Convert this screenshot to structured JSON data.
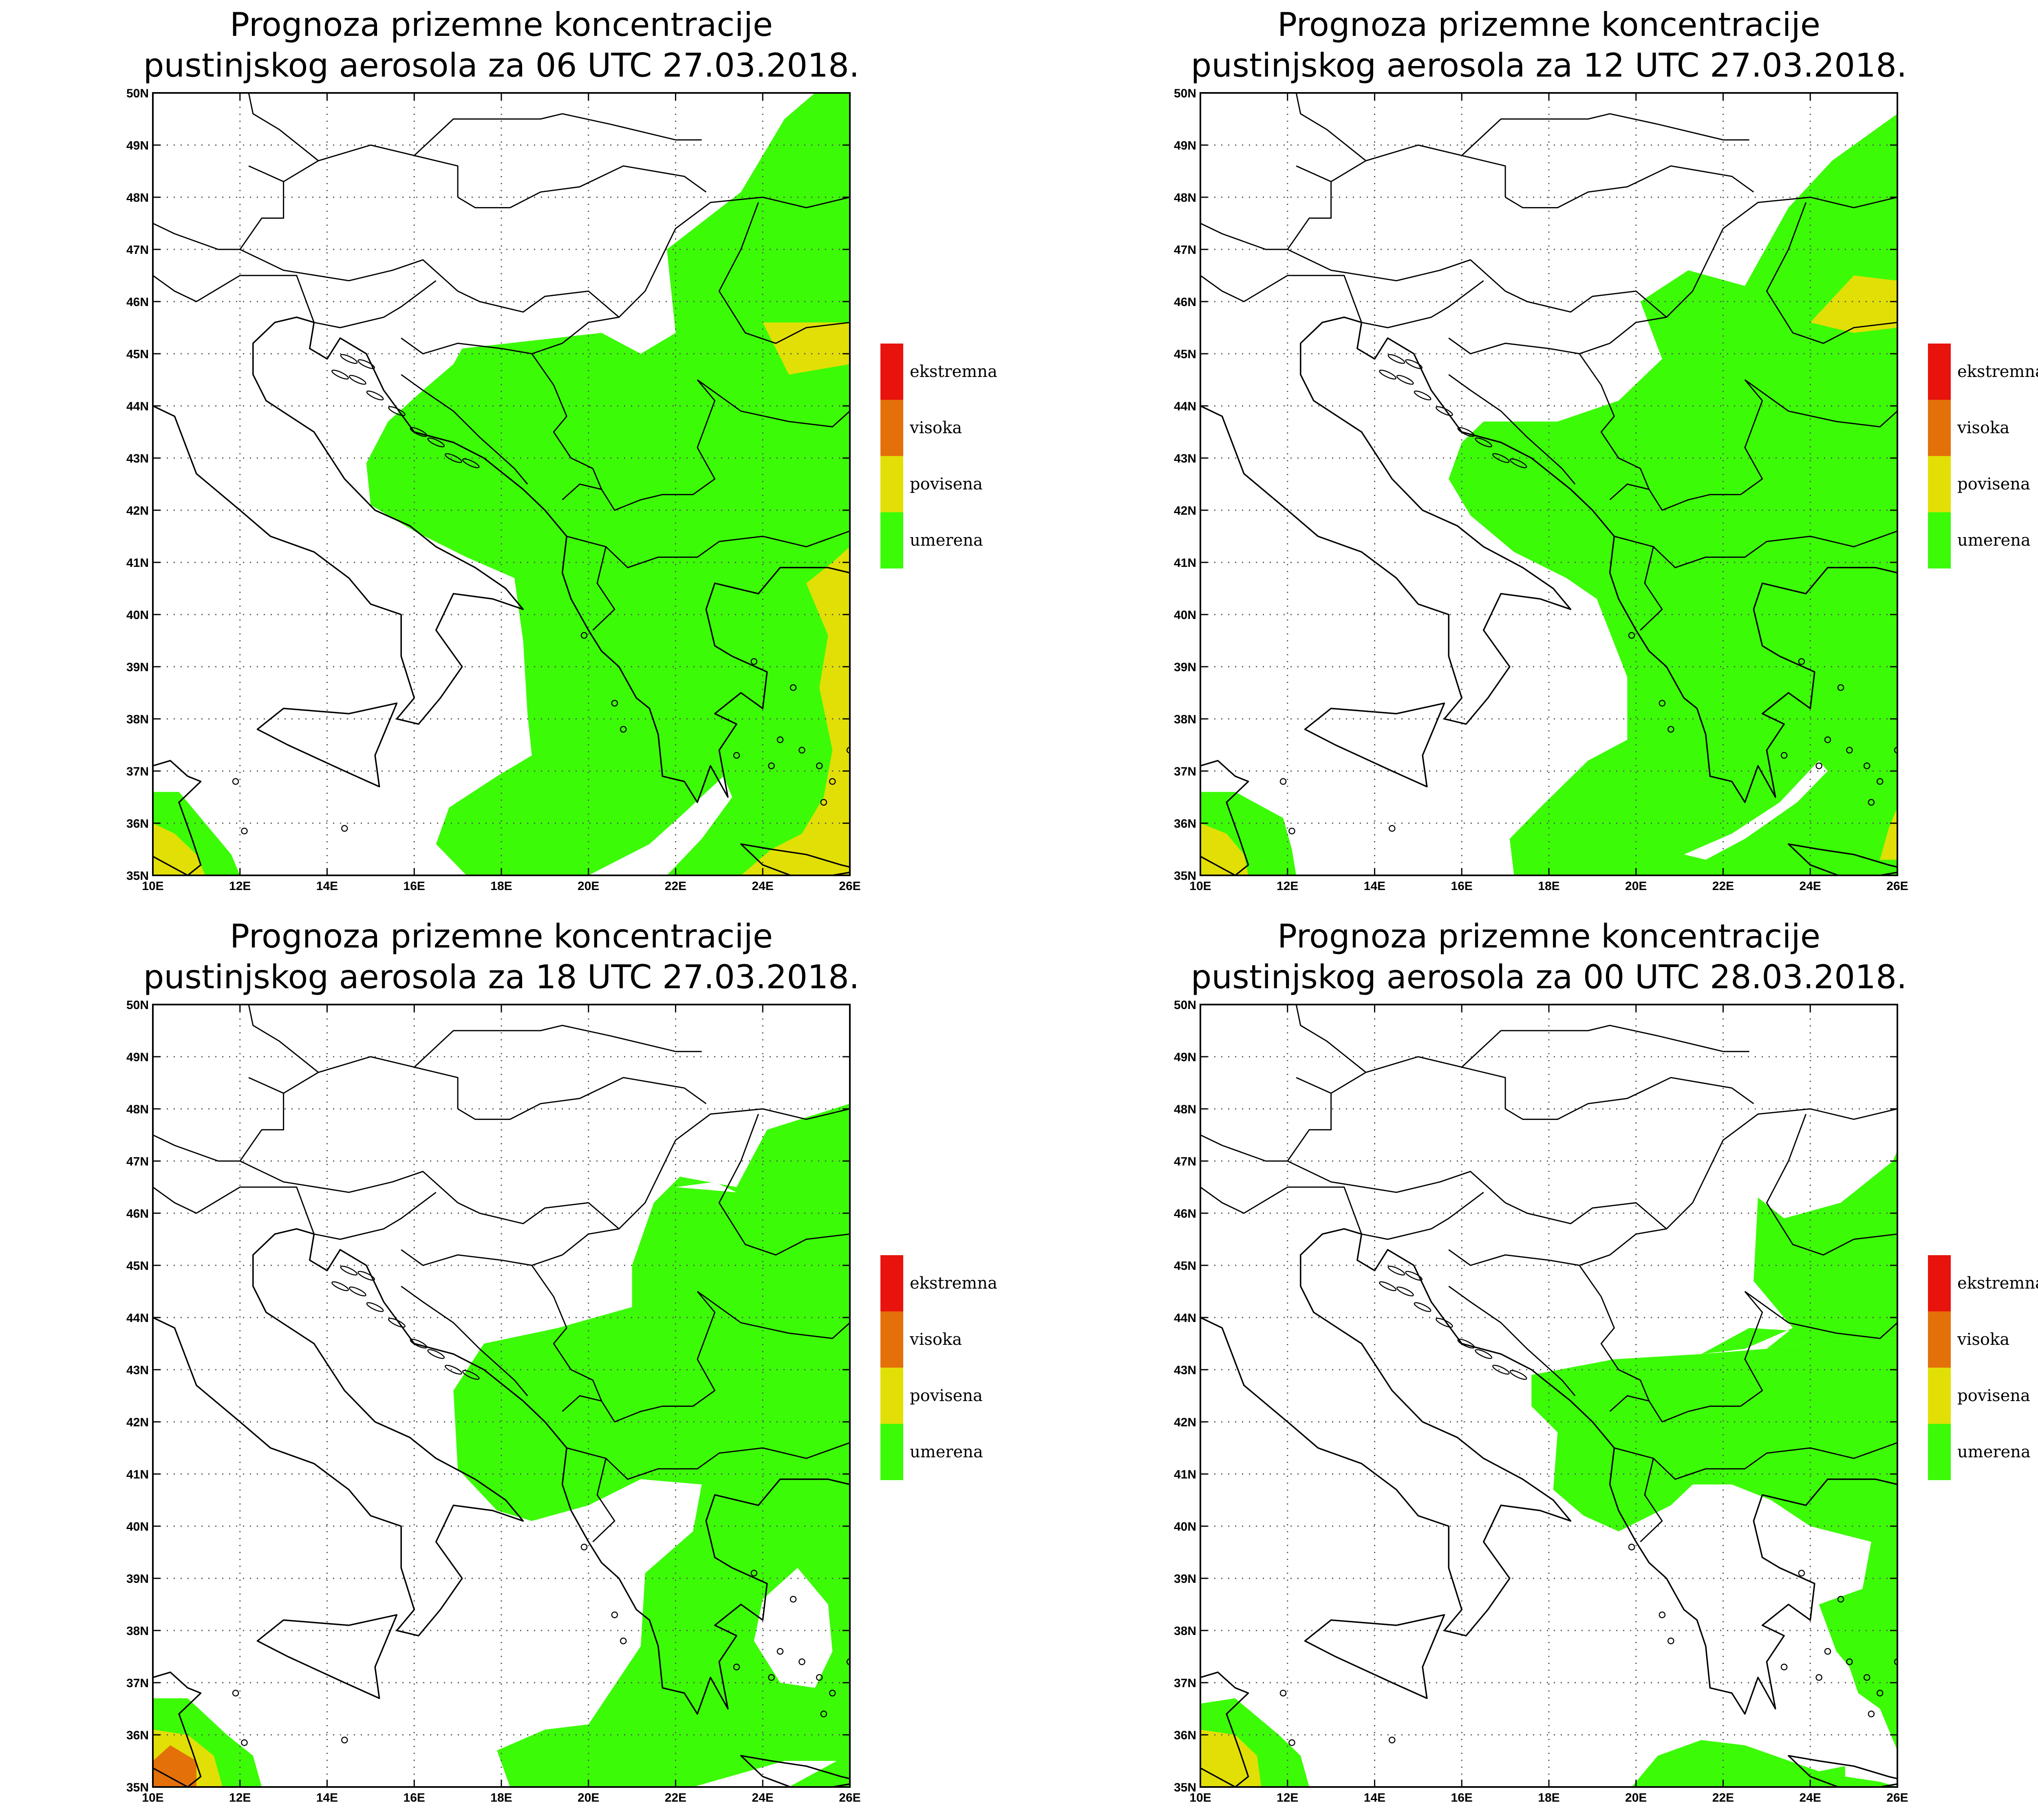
{
  "maps": [
    {
      "title_line1": "Prognoza prizemne koncentracije",
      "title_line2": "pustinjskog aerosola za 06 UTC 27.03.2018."
    },
    {
      "title_line1": "Prognoza prizemne koncentracije",
      "title_line2": "pustinjskog aerosola za 12 UTC 27.03.2018."
    },
    {
      "title_line1": "Prognoza prizemne koncentracije",
      "title_line2": "pustinjskog aerosola za 18 UTC 27.03.2018."
    },
    {
      "title_line1": "Prognoza prizemne koncentracije",
      "title_line2": "pustinjskog aerosola za 00 UTC 28.03.2018."
    }
  ],
  "lon_labels": [
    "10E",
    "12E",
    "14E",
    "16E",
    "18E",
    "20E",
    "22E",
    "24E",
    "26E"
  ],
  "lat_labels": [
    "35N",
    "36N",
    "37N",
    "38N",
    "39N",
    "40N",
    "41N",
    "42N",
    "43N",
    "44N",
    "45N",
    "46N",
    "47N",
    "48N",
    "49N",
    "50N"
  ],
  "legend": [
    {
      "label": "ekstremna",
      "color": "#e8130c"
    },
    {
      "label": "visoka",
      "color": "#e4700a"
    },
    {
      "label": "povisena",
      "color": "#e2df06"
    },
    {
      "label": "umerena",
      "color": "#3cfb07"
    }
  ],
  "fill_colors": {
    "umerena": "#3cfb07",
    "povisena": "#e2df06",
    "visoka": "#e4700a"
  }
}
